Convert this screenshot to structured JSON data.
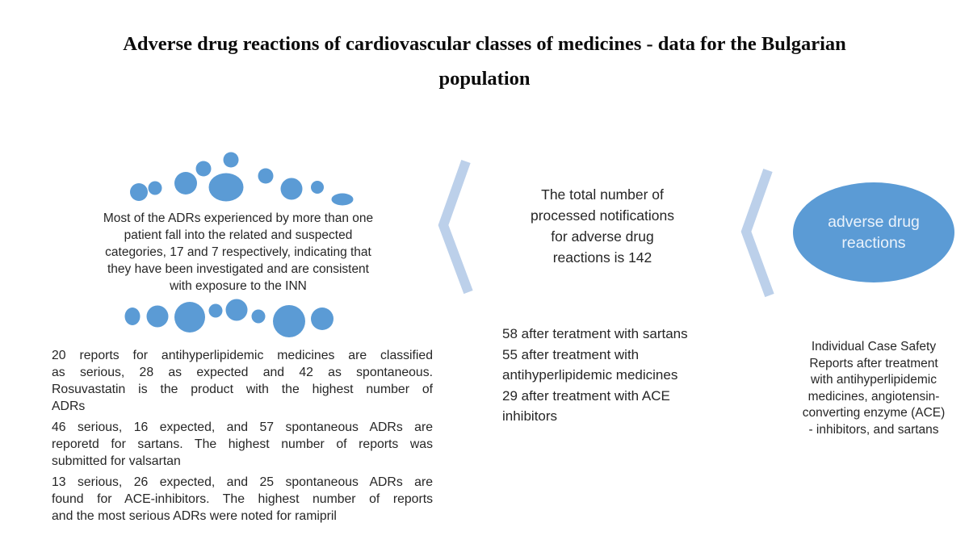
{
  "title": "Adverse drug reactions of cardiovascular classes of medicines - data for the Bulgarian\npopulation",
  "left_panel": {
    "summary": "Most of the ADRs experienced by more than one\npatient fall into the related and suspected\ncategories, 17 and 7 respectively, indicating that\nthey have been investigated and are consistent\nwith exposure to the INN",
    "paragraphs": [
      [
        "20 reports for antihyperlipidemic medicines are classified",
        "as serious, 28 as expected and 42 as spontaneous.",
        "Rosuvastatin is the product with the highest number of",
        "ADRs"
      ],
      [
        "46 serious, 16 expected, and 57 spontaneous ADRs are",
        "reporetd for sartans. The highest number of reports was",
        "submitted for valsartan"
      ],
      [
        "13 serious, 26 expected, and 25 spontaneous ADRs are",
        "found for ACE-inhibitors. The highest number of reports",
        "and the most serious ADRs were noted for ramipril"
      ]
    ]
  },
  "middle_panel": {
    "headline": "The total number of\nprocessed notifications\nfor adverse drug\nreactions is 142",
    "items": [
      "58 after teratment with sartans",
      "55 after treatment with\nantihyperlipidemic medicines",
      "29 after treatment with ACE\ninhibitors"
    ]
  },
  "right_panel": {
    "ellipse_label": "adverse drug\nreactions",
    "description": "Individual Case Safety\nReports after treatment\nwith antihyperlipidemic\nmedicines, angiotensin-\nconverting enzyme (ACE)\n- inhibitors, and sartans"
  },
  "colors": {
    "dot_blue": "#5b9bd5",
    "chevron_blue": "#bcd0ea",
    "ellipse_fill": "#5b9bd5",
    "ellipse_text": "#eaf2fb",
    "body_text": "#262626",
    "title_text": "#0c0c0c"
  }
}
